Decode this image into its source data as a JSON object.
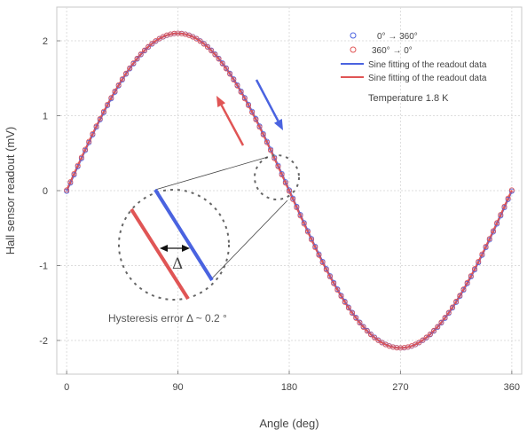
{
  "chart_data": {
    "type": "line",
    "xlabel": "Angle (deg)",
    "ylabel": "Hall sensor readout (mV)",
    "xlim": [
      -8,
      368
    ],
    "ylim": [
      -2.45,
      2.45
    ],
    "x_ticks": [
      0,
      90,
      180,
      270,
      360
    ],
    "y_ticks": [
      -2,
      -1,
      0,
      1,
      2
    ],
    "grid": true,
    "legend_position": "top-right",
    "amplitude_mV": 2.1,
    "series": [
      {
        "name": "0°  → 360°",
        "kind": "scatter",
        "marker": "open-circle",
        "color": "#4a63e0",
        "phase_shift_deg": 0.2
      },
      {
        "name": "360°  →  0°",
        "kind": "scatter",
        "marker": "open-circle",
        "color": "#e05555",
        "phase_shift_deg": -0.2
      },
      {
        "name": "Sine fitting of the readout data",
        "kind": "line",
        "color": "#4a63e0"
      },
      {
        "name": "Sine fitting of the readout data",
        "kind": "line",
        "color": "#e05555"
      }
    ],
    "annotations": {
      "temperature": "Temperature 1.8 K",
      "delta_symbol": "Δ",
      "hysteresis": "Hysteresis error Δ ~ 0.2 °"
    },
    "scan_arrow_colors": {
      "forward": "#4a63e0",
      "backward": "#e05555"
    }
  }
}
